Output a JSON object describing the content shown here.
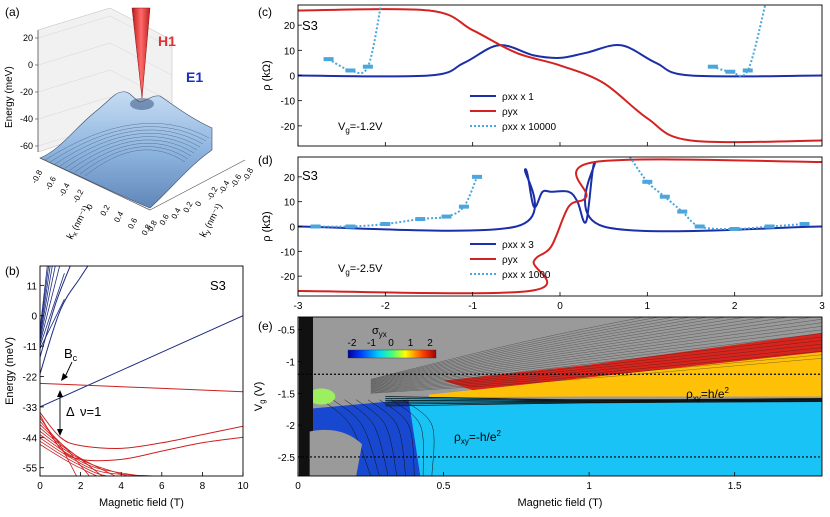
{
  "panels": {
    "a": {
      "label": "(a)",
      "zlabel": "Energy (meV)",
      "kx_label": "k",
      "kx_sub": "x",
      "kx_unit": "(nm⁻¹)",
      "ky_label": "k",
      "ky_sub": "y",
      "ky_unit": "(nm⁻¹)",
      "h1_label": "H1",
      "e1_label": "E1",
      "colors": {
        "h1": "#e03030",
        "e1": "#1a2fc0",
        "surface": "#8fb6e0"
      }
    },
    "b": {
      "label": "(b)",
      "sample": "S3",
      "bc_label": "B",
      "bc_sub": "c",
      "delta_label": "Δ",
      "nu_label": "ν=1"
    },
    "c": {
      "label": "(c)",
      "sample": "S3",
      "vg_label": "V",
      "vg_sub": "g",
      "vg_value": "=-1.2V"
    },
    "d": {
      "label": "(d)",
      "sample": "S3",
      "vg_label": "V",
      "vg_sub": "g",
      "vg_value": "=-2.5V"
    },
    "e": {
      "label": "(e)",
      "cbar_title": "σ",
      "cbar_sub": "yx",
      "cbar_ticks": [
        "-2",
        "-1",
        "0",
        "1",
        "2"
      ],
      "rho_pos_main": "ρ",
      "rho_pos_sub": "xy",
      "rho_pos_value": "=h/e",
      "rho_pos_sup": "2",
      "rho_neg_main": "ρ",
      "rho_neg_sub": "xy",
      "rho_neg_value": "=-h/e",
      "rho_neg_sup": "2",
      "colors": {
        "positive": "#ffc107",
        "negative": "#19c3f5",
        "background": "#9a9a9a"
      }
    }
  },
  "chart_data": [
    {
      "panel": "a",
      "type": "surface",
      "zlabel": "Energy (meV)",
      "xlabel": "kx (nm⁻¹)",
      "ylabel": "ky (nm⁻¹)",
      "z_ticks": [
        "20",
        "0",
        "-20",
        "-40",
        "-60"
      ],
      "x_ticks": [
        "-0.8",
        "-0.6",
        "-0.4",
        "-0.2",
        "0",
        "0.2",
        "0.4",
        "0.6",
        "0.8"
      ],
      "y_ticks": [
        "0.8",
        "0.6",
        "0.4",
        "0.2",
        "0",
        "-0.2",
        "-0.4",
        "-0.6",
        "-0.8"
      ],
      "series": [
        {
          "name": "H1"
        },
        {
          "name": "E1"
        }
      ]
    },
    {
      "panel": "b",
      "type": "line",
      "xlabel": "Magnetic field (T)",
      "ylabel": "Energy (meV)",
      "xlim": [
        0,
        10
      ],
      "ylim": [
        -58,
        18
      ],
      "x_ticks": [
        "0",
        "2",
        "4",
        "6",
        "8",
        "10"
      ],
      "y_ticks": [
        "11",
        "0",
        "-11",
        "-22",
        "-33",
        "-44",
        "-55"
      ],
      "annotations": [
        "Bc",
        "Δ",
        "ν=1"
      ],
      "colors": {
        "electron": "#1c2a80",
        "hole": "#cc1f1f"
      },
      "series": [
        {
          "group": "electron",
          "x": [
            0,
            10
          ],
          "y": [
            -33,
            0
          ]
        },
        {
          "group": "electron",
          "x": [
            0,
            1,
            2,
            3
          ],
          "y": [
            -21,
            2,
            14,
            25
          ]
        },
        {
          "group": "electron",
          "x": [
            0,
            0.8,
            1.6
          ],
          "y": [
            -15,
            5,
            20
          ]
        },
        {
          "group": "hole",
          "x": [
            0,
            10
          ],
          "y": [
            -24.5,
            -27.5
          ]
        },
        {
          "group": "hole",
          "x": [
            0,
            1,
            2,
            4,
            6,
            8,
            10
          ],
          "y": [
            -35,
            -44,
            -47,
            -48,
            -46,
            -43,
            -40
          ]
        },
        {
          "group": "hole",
          "x": [
            0,
            1,
            2,
            4,
            6,
            8,
            10
          ],
          "y": [
            -36,
            -48,
            -52,
            -52,
            -49,
            -46,
            -44
          ]
        }
      ]
    },
    {
      "panel": "c",
      "type": "line",
      "ylabel": "ρ (kΩ)",
      "xlim": [
        -3,
        3
      ],
      "ylim": [
        -28,
        28
      ],
      "y_ticks": [
        "20",
        "10",
        "0",
        "-10",
        "-20"
      ],
      "series": [
        {
          "name": "ρxx x 1",
          "style": "solid",
          "color": "#1a2fa8",
          "x": [
            -3,
            -1.5,
            -1.1,
            -0.7,
            -0.3,
            0,
            0.3,
            0.7,
            1.1,
            1.5,
            3
          ],
          "y": [
            0,
            0,
            5,
            12,
            8,
            7,
            9,
            12,
            5,
            0,
            0
          ]
        },
        {
          "name": "ρyx",
          "style": "solid",
          "color": "#d42222",
          "x": [
            -3,
            -1.5,
            -1.0,
            -0.5,
            0,
            0.5,
            1.0,
            1.5,
            3
          ],
          "y": [
            25.8,
            25.8,
            18,
            9,
            4,
            -3,
            -17,
            -25.8,
            -25.8
          ]
        },
        {
          "name": "ρxx x 10000",
          "style": "dotted",
          "color": "#4aa6dc",
          "x": [
            -2.65,
            -2.4,
            -2.2,
            -2.05
          ],
          "y": [
            6.5,
            2,
            3.5,
            28
          ],
          "x2": [
            1.75,
            1.95,
            2.15,
            2.35
          ],
          "y2": [
            3.5,
            1.5,
            2,
            28
          ]
        }
      ]
    },
    {
      "panel": "d",
      "type": "line",
      "xlabel": "",
      "ylabel": "ρ (kΩ)",
      "xlim": [
        -3,
        3
      ],
      "ylim": [
        -28,
        28
      ],
      "x_ticks": [
        "-3",
        "-2",
        "-1",
        "0",
        "1",
        "2",
        "3"
      ],
      "y_ticks": [
        "20",
        "10",
        "0",
        "-10",
        "-20"
      ],
      "series": [
        {
          "name": "ρxx x 3",
          "style": "solid",
          "color": "#1a2fa8",
          "x": [
            -3,
            -0.5,
            -0.4,
            -0.3,
            -0.2,
            -0.1,
            0.1,
            0.2,
            0.3,
            0.4,
            0.5,
            3
          ],
          "y": [
            0,
            0,
            23,
            8,
            14,
            14,
            14,
            10,
            2,
            26,
            0,
            0
          ]
        },
        {
          "name": "ρyx",
          "style": "solid",
          "color": "#d42222",
          "x": [
            -3,
            -0.35,
            -0.3,
            -0.1,
            0.1,
            0.3,
            0.4,
            3
          ],
          "y": [
            -26,
            -26,
            -14,
            -8,
            8,
            12,
            26,
            26
          ]
        },
        {
          "name": "ρxx x 1000",
          "style": "dotted",
          "color": "#4aa6dc",
          "x": [
            -2.8,
            -2.4,
            -2,
            -1.6,
            -1.3,
            -1.1,
            -0.95
          ],
          "y": [
            0,
            0,
            1,
            3,
            4,
            8,
            20
          ],
          "x2": [
            0.8,
            1,
            1.2,
            1.4,
            1.6,
            2,
            2.4,
            2.8
          ],
          "y2": [
            28,
            18,
            12,
            6,
            0,
            -1,
            0,
            1
          ]
        }
      ]
    },
    {
      "panel": "e",
      "type": "heatmap",
      "xlabel": "Magnetic field (T)",
      "ylabel": "Vg (V)",
      "xlim": [
        0,
        1.8
      ],
      "ylim": [
        -2.8,
        -0.3
      ],
      "x_ticks": [
        "0",
        "0.5",
        "1",
        "1.5"
      ],
      "y_ticks": [
        "-0.5",
        "-1",
        "-1.5",
        "-2",
        "-2.5"
      ],
      "colorbar_ticks": [
        -2,
        -1,
        0,
        1,
        2
      ],
      "dashed_lines_vg": [
        -1.2,
        -2.5
      ],
      "regions": [
        "ρxy=h/e²",
        "ρxy=-h/e²"
      ]
    }
  ]
}
